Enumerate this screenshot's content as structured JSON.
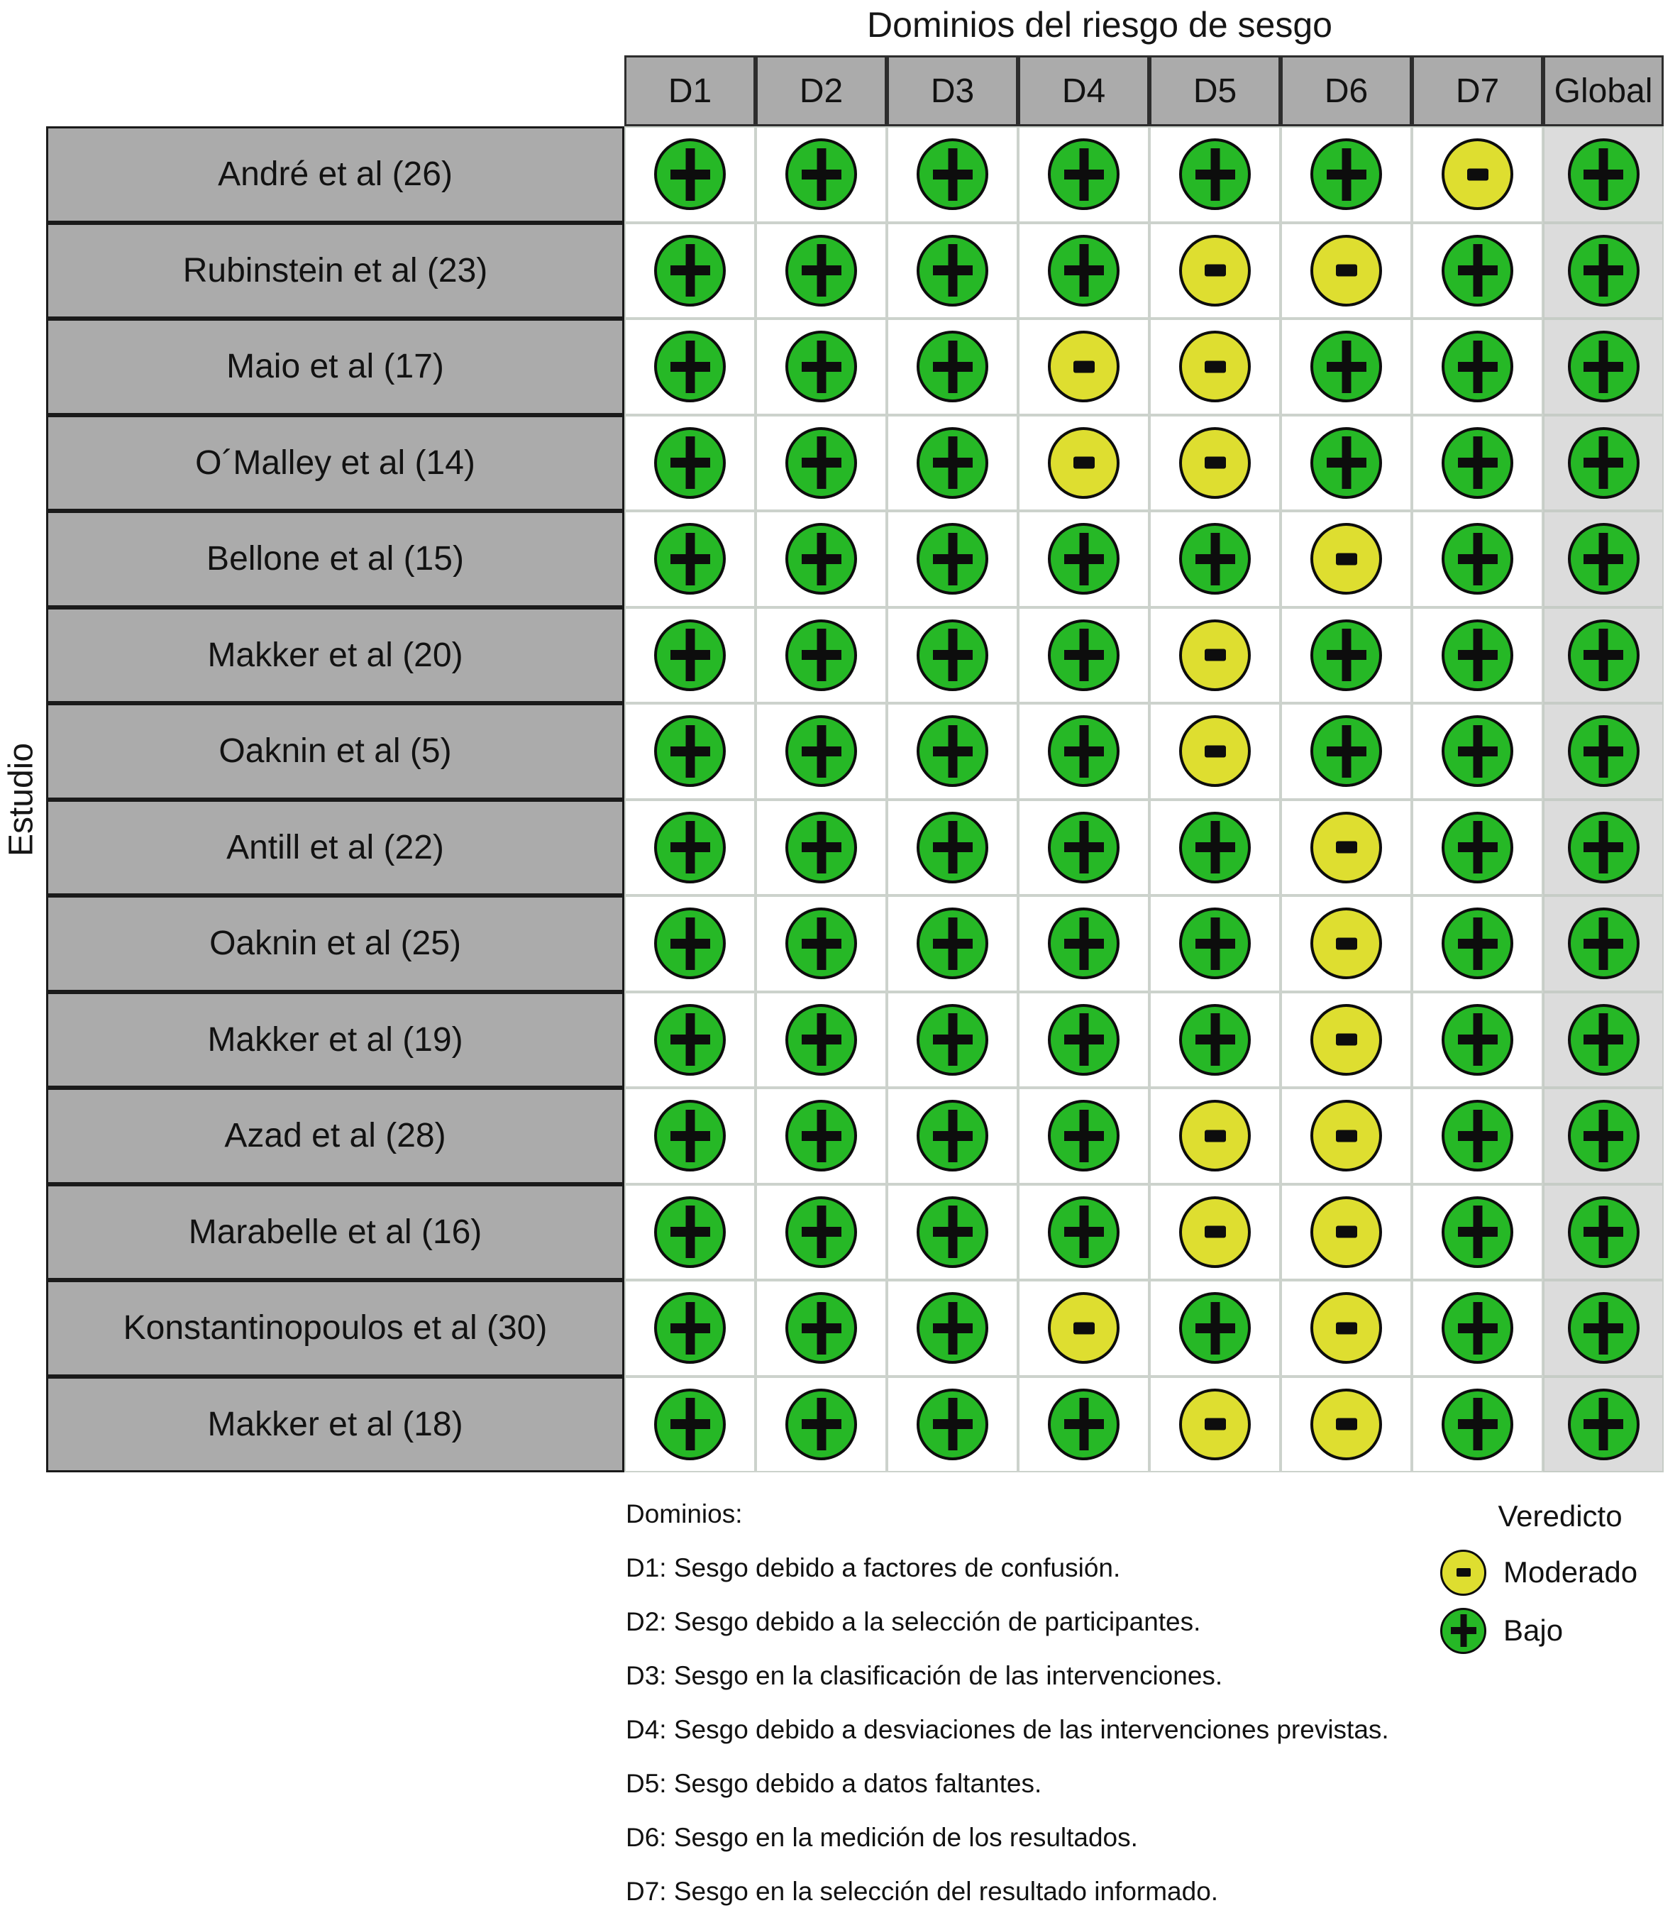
{
  "title": "Dominios del riesgo de sesgo",
  "y_axis_label": "Estudio",
  "columns": [
    "D1",
    "D2",
    "D3",
    "D4",
    "D5",
    "D6",
    "D7",
    "Global"
  ],
  "rows": [
    {
      "study": "André et al (26)",
      "ratings": [
        "+",
        "+",
        "+",
        "+",
        "+",
        "+",
        "-",
        "+"
      ]
    },
    {
      "study": "Rubinstein et al (23)",
      "ratings": [
        "+",
        "+",
        "+",
        "+",
        "-",
        "-",
        "+",
        "+"
      ]
    },
    {
      "study": "Maio et al (17)",
      "ratings": [
        "+",
        "+",
        "+",
        "-",
        "-",
        "+",
        "+",
        "+"
      ]
    },
    {
      "study": "O´Malley et al (14)",
      "ratings": [
        "+",
        "+",
        "+",
        "-",
        "-",
        "+",
        "+",
        "+"
      ]
    },
    {
      "study": "Bellone et al (15)",
      "ratings": [
        "+",
        "+",
        "+",
        "+",
        "+",
        "-",
        "+",
        "+"
      ]
    },
    {
      "study": "Makker et al (20)",
      "ratings": [
        "+",
        "+",
        "+",
        "+",
        "-",
        "+",
        "+",
        "+"
      ]
    },
    {
      "study": "Oaknin et al (5)",
      "ratings": [
        "+",
        "+",
        "+",
        "+",
        "-",
        "+",
        "+",
        "+"
      ]
    },
    {
      "study": "Antill et al (22)",
      "ratings": [
        "+",
        "+",
        "+",
        "+",
        "+",
        "-",
        "+",
        "+"
      ]
    },
    {
      "study": "Oaknin et al (25)",
      "ratings": [
        "+",
        "+",
        "+",
        "+",
        "+",
        "-",
        "+",
        "+"
      ]
    },
    {
      "study": "Makker et al (19)",
      "ratings": [
        "+",
        "+",
        "+",
        "+",
        "+",
        "-",
        "+",
        "+"
      ]
    },
    {
      "study": "Azad et al (28)",
      "ratings": [
        "+",
        "+",
        "+",
        "+",
        "-",
        "-",
        "+",
        "+"
      ]
    },
    {
      "study": "Marabelle et al (16)",
      "ratings": [
        "+",
        "+",
        "+",
        "+",
        "-",
        "-",
        "+",
        "+"
      ]
    },
    {
      "study": "Konstantinopoulos et al (30)",
      "ratings": [
        "+",
        "+",
        "+",
        "-",
        "+",
        "-",
        "+",
        "+"
      ]
    },
    {
      "study": "Makker et al (18)",
      "ratings": [
        "+",
        "+",
        "+",
        "+",
        "-",
        "-",
        "+",
        "+"
      ]
    }
  ],
  "legend": {
    "domains_title": "Dominios:",
    "domains": [
      "D1: Sesgo debido a factores de confusión.",
      "D2: Sesgo debido a la selección de participantes.",
      "D3: Sesgo en la clasificación de las intervenciones.",
      "D4: Sesgo debido a desviaciones de las intervenciones previstas.",
      "D5: Sesgo debido a datos faltantes.",
      "D6: Sesgo en la medición de los resultados.",
      "D7: Sesgo en la selección del resultado informado."
    ],
    "verdict_title": "Veredicto",
    "verdict_items": [
      {
        "symbol": "-",
        "label": "Moderado",
        "color": "#dede30"
      },
      {
        "symbol": "+",
        "label": "Bajo",
        "color": "#26b826"
      }
    ]
  },
  "colors": {
    "low_green": "#26b826",
    "moderate_yellow": "#dede30",
    "header_gray": "#ababab",
    "global_column_bg": "#dcdcdc",
    "cell_bg": "#ffffff"
  },
  "chart_data": {
    "type": "heatmap",
    "title": "Dominios del riesgo de sesgo",
    "xlabel": "Dominios del riesgo de sesgo",
    "ylabel": "Estudio",
    "x_categories": [
      "D1",
      "D2",
      "D3",
      "D4",
      "D5",
      "D6",
      "D7",
      "Global"
    ],
    "y_categories": [
      "André et al (26)",
      "Rubinstein et al (23)",
      "Maio et al (17)",
      "O´Malley et al (14)",
      "Bellone et al (15)",
      "Makker et al (20)",
      "Oaknin et al (5)",
      "Antill et al (22)",
      "Oaknin et al (25)",
      "Makker et al (19)",
      "Azad et al (28)",
      "Marabelle et al (16)",
      "Konstantinopoulos et al (30)",
      "Makker et al (18)"
    ],
    "values": [
      [
        "+",
        "+",
        "+",
        "+",
        "+",
        "+",
        "-",
        "+"
      ],
      [
        "+",
        "+",
        "+",
        "+",
        "-",
        "-",
        "+",
        "+"
      ],
      [
        "+",
        "+",
        "+",
        "-",
        "-",
        "+",
        "+",
        "+"
      ],
      [
        "+",
        "+",
        "+",
        "-",
        "-",
        "+",
        "+",
        "+"
      ],
      [
        "+",
        "+",
        "+",
        "+",
        "+",
        "-",
        "+",
        "+"
      ],
      [
        "+",
        "+",
        "+",
        "+",
        "-",
        "+",
        "+",
        "+"
      ],
      [
        "+",
        "+",
        "+",
        "+",
        "-",
        "+",
        "+",
        "+"
      ],
      [
        "+",
        "+",
        "+",
        "+",
        "+",
        "-",
        "+",
        "+"
      ],
      [
        "+",
        "+",
        "+",
        "+",
        "+",
        "-",
        "+",
        "+"
      ],
      [
        "+",
        "+",
        "+",
        "+",
        "+",
        "-",
        "+",
        "+"
      ],
      [
        "+",
        "+",
        "+",
        "+",
        "-",
        "-",
        "+",
        "+"
      ],
      [
        "+",
        "+",
        "+",
        "+",
        "-",
        "-",
        "+",
        "+"
      ],
      [
        "+",
        "+",
        "+",
        "-",
        "+",
        "-",
        "+",
        "+"
      ],
      [
        "+",
        "+",
        "+",
        "+",
        "-",
        "-",
        "+",
        "+"
      ]
    ],
    "value_legend": {
      "+": "Bajo (verde)",
      "-": "Moderado (amarillo)"
    },
    "legend_position": "bottom-right",
    "grid": true
  }
}
